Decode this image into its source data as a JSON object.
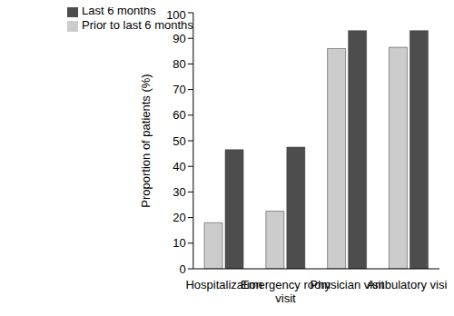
{
  "chart_data": {
    "type": "bar",
    "y_label": "Proportion of patients (%)",
    "categories": [
      "Hospitalization",
      "Emergency room visit",
      "Physician visit",
      "Ambulatory visit"
    ],
    "series": [
      {
        "name": "Prior to last 6 months",
        "color": "#cccccc",
        "values": [
          18,
          22.5,
          86,
          86.5
        ]
      },
      {
        "name": "Last 6 months",
        "color": "#4d4d4d",
        "values": [
          46.5,
          47.5,
          93,
          93
        ]
      }
    ],
    "ylim": [
      0,
      100
    ],
    "yticks": [
      0,
      10,
      20,
      30,
      40,
      50,
      60,
      70,
      80,
      90,
      100
    ],
    "grid": false,
    "legend": "upper left"
  }
}
